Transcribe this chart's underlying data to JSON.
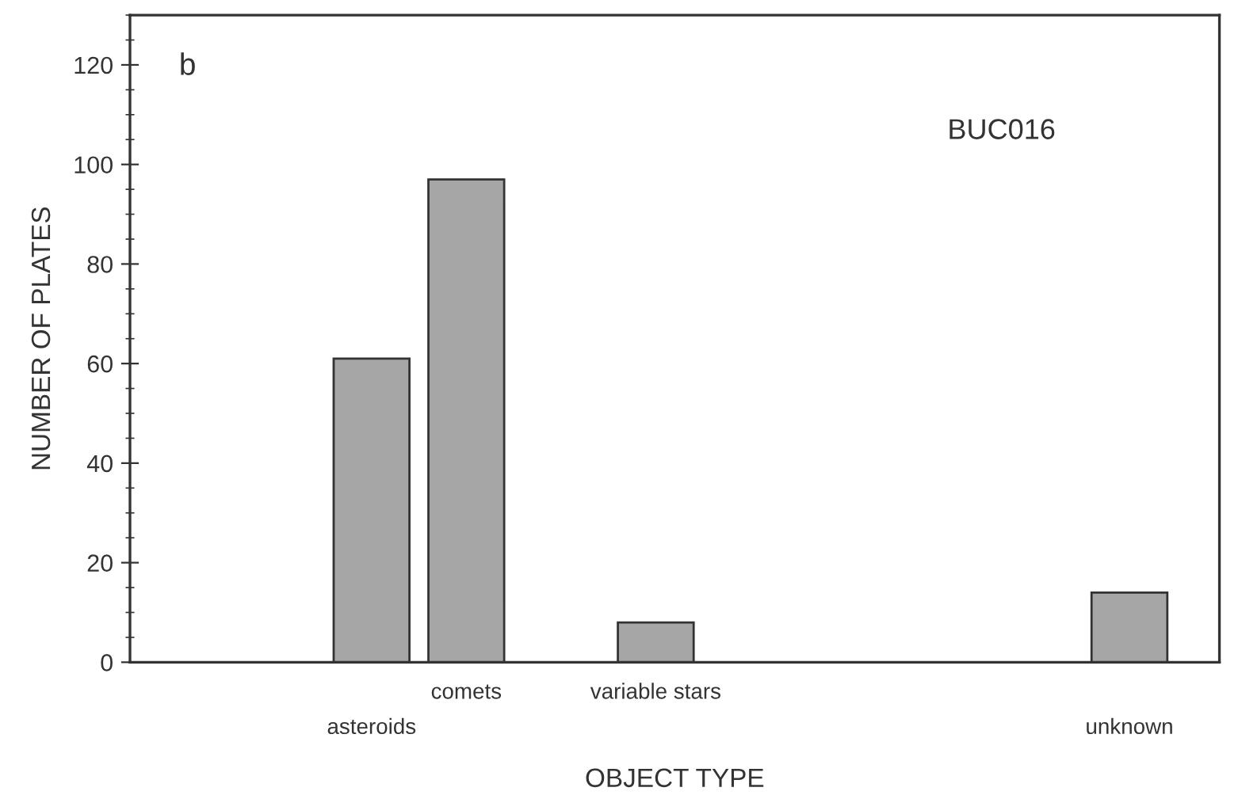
{
  "chart_data": {
    "type": "bar",
    "xlabel": "OBJECT TYPE",
    "ylabel": "NUMBER OF PLATES",
    "categories": [
      null,
      null,
      "asteroids",
      "comets",
      null,
      "variable stars",
      null,
      null,
      null,
      null,
      "unknown"
    ],
    "values": [
      null,
      null,
      61,
      97,
      null,
      8,
      null,
      null,
      null,
      null,
      14
    ],
    "color": "#a6a6a6",
    "ylim": [
      0,
      130
    ],
    "yticks": [
      0,
      20,
      40,
      60,
      80,
      100,
      120
    ],
    "grid": false,
    "legend": false,
    "annotations": [
      "b",
      "BUC016"
    ]
  }
}
